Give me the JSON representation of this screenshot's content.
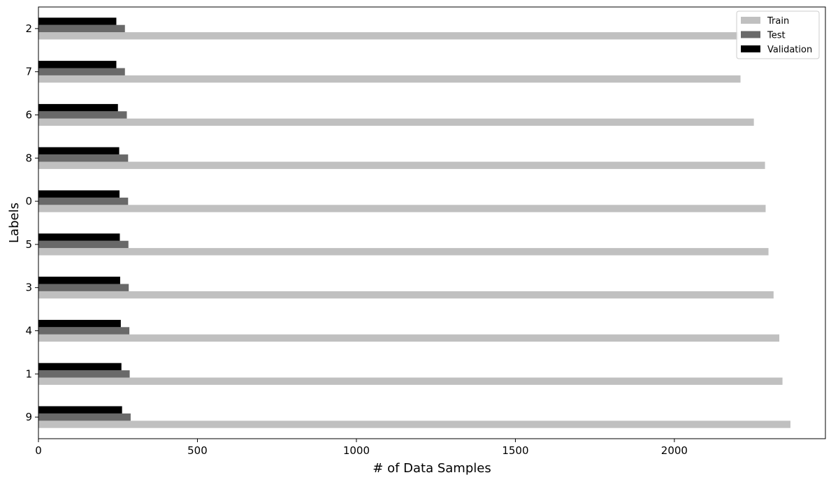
{
  "chart_data": {
    "type": "bar",
    "orientation": "horizontal",
    "categories": [
      "9",
      "1",
      "4",
      "3",
      "5",
      "0",
      "8",
      "6",
      "7",
      "2"
    ],
    "series": [
      {
        "name": "Train",
        "color": "#c0c0c0",
        "values": [
          2365,
          2340,
          2330,
          2312,
          2296,
          2287,
          2285,
          2250,
          2208,
          2202
        ]
      },
      {
        "name": "Test",
        "color": "#696969",
        "values": [
          290,
          287,
          286,
          284,
          283,
          282,
          282,
          278,
          272,
          272
        ]
      },
      {
        "name": "Validation",
        "color": "#000000",
        "values": [
          263,
          261,
          259,
          257,
          256,
          255,
          254,
          250,
          245,
          245
        ]
      }
    ],
    "xlabel": "# of Data Samples",
    "ylabel": "Labels",
    "xlim": [
      0,
      2475
    ],
    "xticks": [
      0,
      500,
      1000,
      1500,
      2000
    ],
    "grid": false,
    "legend_position": "top-right"
  }
}
